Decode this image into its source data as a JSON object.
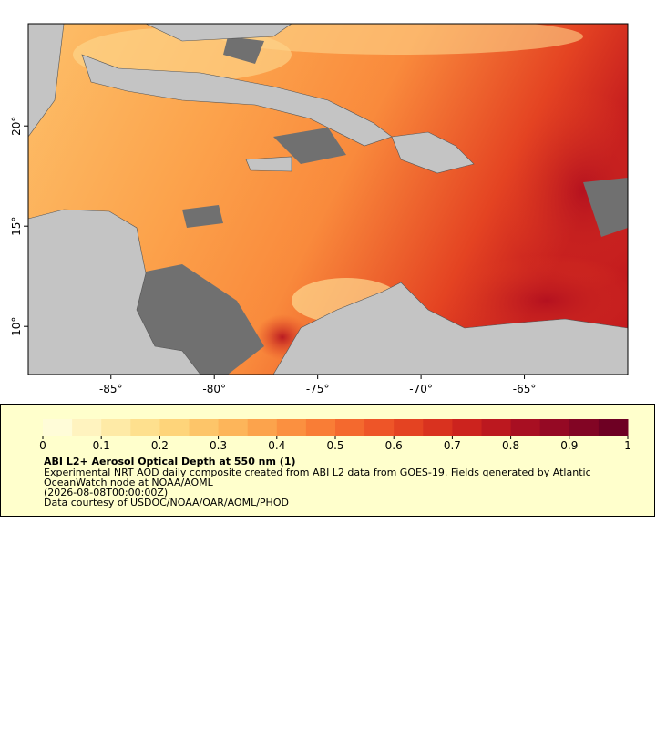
{
  "chart_data": {
    "type": "map",
    "xlim": [
      -89,
      -60
    ],
    "ylim": [
      7.6,
      25.1
    ],
    "xticks": [
      {
        "value": -85,
        "label": "-85°"
      },
      {
        "value": -80,
        "label": "-80°"
      },
      {
        "value": -75,
        "label": "-75°"
      },
      {
        "value": -70,
        "label": "-70°"
      },
      {
        "value": -65,
        "label": "-65°"
      }
    ],
    "yticks": [
      {
        "value": 10,
        "label": "10°"
      },
      {
        "value": 15,
        "label": "15°"
      },
      {
        "value": 20,
        "label": "20°"
      }
    ],
    "colorbar": {
      "lim": [
        0,
        1
      ],
      "ticks": [
        0,
        0.1,
        0.2,
        0.3,
        0.4,
        0.5,
        0.6,
        0.7,
        0.8,
        0.9,
        1
      ],
      "colors": [
        "#fffcd8",
        "#fff3bf",
        "#feeaa6",
        "#fee08e",
        "#fed47a",
        "#fdc569",
        "#fdb55a",
        "#fca34c",
        "#fb9040",
        "#f97d36",
        "#f4692e",
        "#ee5528",
        "#e44322",
        "#d9321f",
        "#cc231e",
        "#bc181f",
        "#a80f22",
        "#950924",
        "#820524",
        "#6e0023"
      ]
    },
    "legend": {
      "title": "ABI L2+ Aerosol Optical Depth at 550 nm (1)",
      "lines": [
        "Experimental NRT AOD daily composite created from ABI L2 data from GOES-19. Fields generated by Atlantic",
        "OceanWatch node at NOAA/AOML",
        "(2026-08-08T00:00:00Z)",
        "Data courtesy of USDOC/NOAA/OAR/AOML/PHOD"
      ]
    }
  }
}
